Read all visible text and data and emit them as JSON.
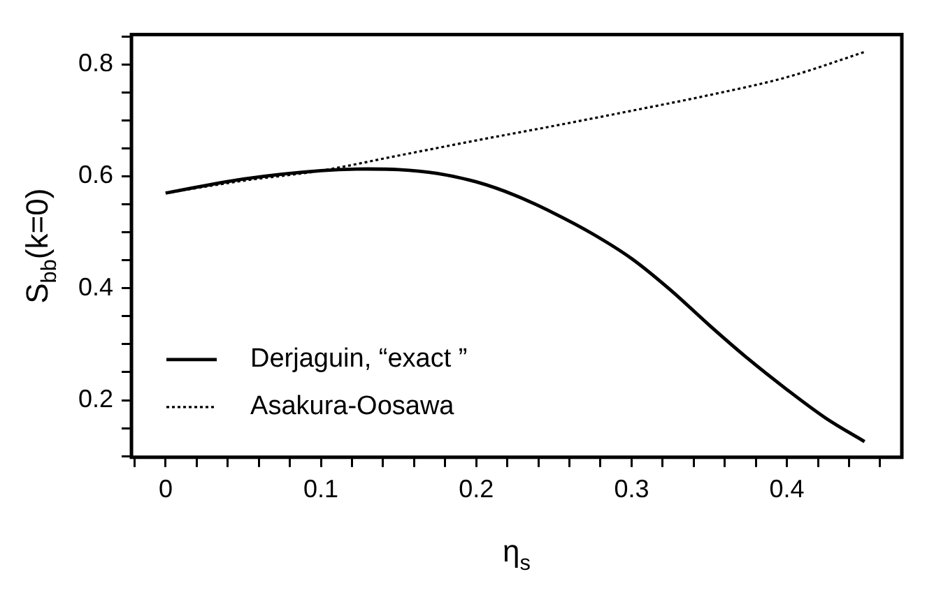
{
  "chart_data": {
    "type": "line",
    "xlabel": "η$_{s}$",
    "ylabel": "S$_{bb}$(k=0)",
    "xlim": [
      -0.022,
      0.474
    ],
    "ylim": [
      0.098,
      0.853
    ],
    "xticks": [
      {
        "value": -0.02,
        "label": null
      },
      0,
      {
        "value": 0.02,
        "label": null
      },
      {
        "value": 0.04,
        "label": null
      },
      {
        "value": 0.06,
        "label": null
      },
      {
        "value": 0.08,
        "label": null
      },
      0.1,
      {
        "value": 0.12,
        "label": null
      },
      {
        "value": 0.14,
        "label": null
      },
      {
        "value": 0.16,
        "label": null
      },
      {
        "value": 0.18,
        "label": null
      },
      0.2,
      {
        "value": 0.22,
        "label": null
      },
      {
        "value": 0.24,
        "label": null
      },
      {
        "value": 0.26,
        "label": null
      },
      {
        "value": 0.28,
        "label": null
      },
      0.3,
      {
        "value": 0.32,
        "label": null
      },
      {
        "value": 0.34,
        "label": null
      },
      {
        "value": 0.36,
        "label": null
      },
      {
        "value": 0.38,
        "label": null
      },
      0.4,
      {
        "value": 0.42,
        "label": null
      },
      {
        "value": 0.44,
        "label": null
      },
      {
        "value": 0.46,
        "label": null
      }
    ],
    "yticks": [
      {
        "value": 0.1,
        "label": null
      },
      {
        "value": 0.15,
        "label": null
      },
      0.2,
      {
        "value": 0.25,
        "label": null
      },
      {
        "value": 0.3,
        "label": null
      },
      {
        "value": 0.35,
        "label": null
      },
      0.4,
      {
        "value": 0.45,
        "label": null
      },
      {
        "value": 0.5,
        "label": null
      },
      {
        "value": 0.55,
        "label": null
      },
      0.6,
      {
        "value": 0.65,
        "label": null
      },
      {
        "value": 0.7,
        "label": null
      },
      {
        "value": 0.75,
        "label": null
      },
      0.8,
      {
        "value": 0.85,
        "label": null
      }
    ],
    "grid": false,
    "legend": "bottom left",
    "marker": "none",
    "series": [
      {
        "name": "Derjaguin, “exact ”",
        "color": "#000000",
        "line_style": "solid",
        "x": [
          0,
          0.05,
          0.1,
          0.13,
          0.15,
          0.175,
          0.2,
          0.225,
          0.25,
          0.275,
          0.3,
          0.325,
          0.35,
          0.375,
          0.4,
          0.425,
          0.45
        ],
        "values": [
          0.57,
          0.595,
          0.61,
          0.613,
          0.612,
          0.605,
          0.59,
          0.566,
          0.534,
          0.497,
          0.453,
          0.397,
          0.334,
          0.274,
          0.219,
          0.168,
          0.126
        ]
      },
      {
        "name": "Asakura-Oosawa",
        "color": "#000000",
        "line_style": "dotted",
        "x": [
          0,
          0.05,
          0.1,
          0.15,
          0.2,
          0.25,
          0.3,
          0.35,
          0.4,
          0.45
        ],
        "values": [
          0.57,
          0.592,
          0.61,
          0.637,
          0.664,
          0.69,
          0.717,
          0.745,
          0.777,
          0.822
        ]
      }
    ]
  }
}
